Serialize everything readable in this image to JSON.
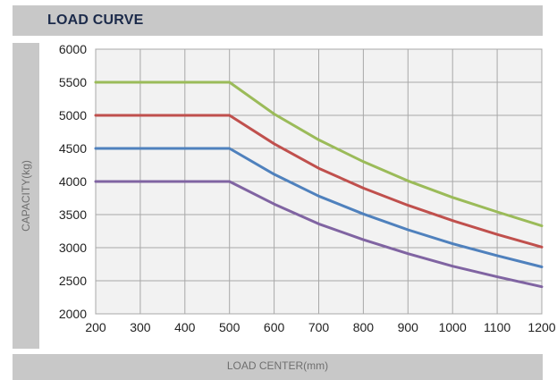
{
  "header": {
    "title": "LOAD CURVE"
  },
  "chart_data": {
    "type": "line",
    "title": "LOAD CURVE",
    "xlabel": "LOAD CENTER(mm)",
    "ylabel": "CAPACITY(kg)",
    "xlim": [
      200,
      1200
    ],
    "ylim": [
      2000,
      6000
    ],
    "xticks": [
      200,
      300,
      400,
      500,
      600,
      700,
      800,
      900,
      1000,
      1100,
      1200
    ],
    "yticks": [
      2000,
      2500,
      3000,
      3500,
      4000,
      4500,
      5000,
      5500,
      6000
    ],
    "grid": true,
    "x": [
      200,
      300,
      400,
      500,
      600,
      700,
      800,
      900,
      1000,
      1100,
      1200
    ],
    "series": [
      {
        "color": "#9bbb59",
        "values": [
          5500,
          5500,
          5500,
          5500,
          5020,
          4630,
          4300,
          4010,
          3760,
          3540,
          3330
        ]
      },
      {
        "color": "#c0504d",
        "values": [
          5000,
          5000,
          5000,
          5000,
          4570,
          4200,
          3900,
          3640,
          3410,
          3200,
          3010
        ]
      },
      {
        "color": "#4f81bd",
        "values": [
          4500,
          4500,
          4500,
          4500,
          4110,
          3780,
          3510,
          3270,
          3060,
          2880,
          2710
        ]
      },
      {
        "color": "#8064a2",
        "values": [
          4000,
          4000,
          4000,
          4000,
          3660,
          3360,
          3120,
          2910,
          2720,
          2560,
          2410
        ]
      }
    ]
  }
}
